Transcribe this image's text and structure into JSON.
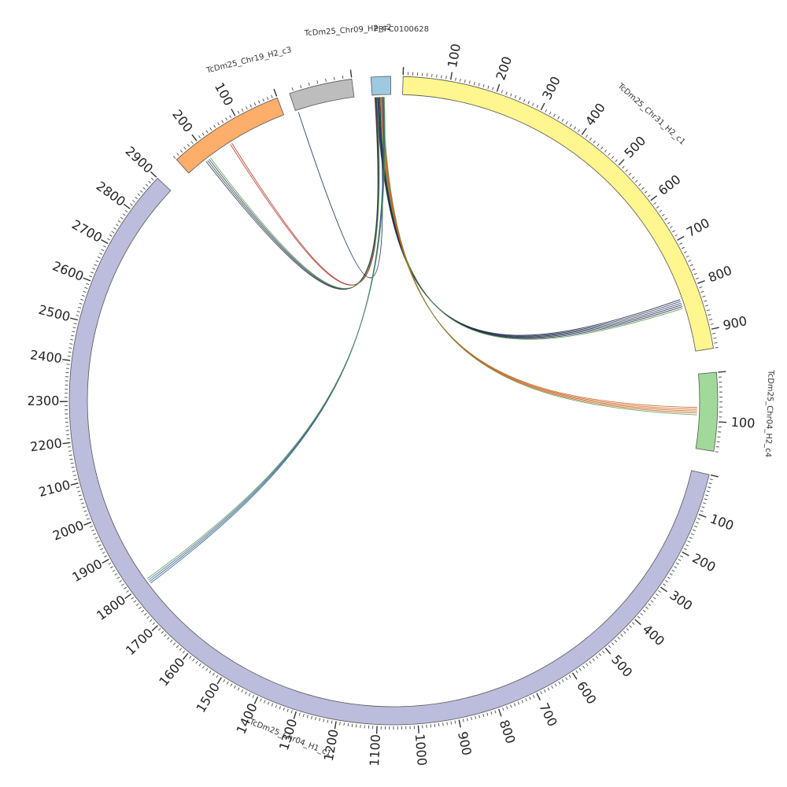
{
  "diagram": {
    "type": "circos",
    "units_per_tick_minor": 10,
    "units_per_tick_major": 100,
    "segments": [
      {
        "id": "chr31",
        "label": "TcDm25_Chr31_H2_c1",
        "length": 940,
        "color": "#fff68f"
      },
      {
        "id": "chr04h2",
        "label": "TcDm25_Chr04_H2_c4",
        "length": 160,
        "color": "#a1d99b"
      },
      {
        "id": "chr04h1",
        "label": "TcDm25_Chr04_H1_c1",
        "length": 2900,
        "color": "#bcbddc"
      },
      {
        "id": "chr19",
        "label": "TcDm25_Chr19_H2_c3",
        "length": 260,
        "color": "#fdae6b"
      },
      {
        "id": "chr09",
        "label": "TcDm25_Chr09_H2_c2",
        "length": 75,
        "color": "#bdbdbd"
      },
      {
        "id": "prfc",
        "label": "PRFC0100628",
        "length": 20,
        "color": "#9ecae1"
      }
    ],
    "links": [
      {
        "from": "prfc",
        "from_pos": 6,
        "to": "chr31",
        "to_pos": 830,
        "color": "#1b2a49",
        "bundle": 6
      },
      {
        "from": "prfc",
        "from_pos": 10,
        "to": "chr04h2",
        "to_pos": 80,
        "color": "#c8601c",
        "bundle": 5
      },
      {
        "from": "prfc",
        "from_pos": 3,
        "to": "chr19",
        "to_pos": 140,
        "color": "#b03a2e",
        "bundle": 2
      },
      {
        "from": "prfc",
        "from_pos": 4,
        "to": "chr19",
        "to_pos": 205,
        "color": "#2c3e50",
        "bundle": 4
      },
      {
        "from": "prfc",
        "from_pos": 8,
        "to": "chr09",
        "to_pos": 72,
        "color": "#17324d",
        "bundle": 1
      },
      {
        "from": "prfc",
        "from_pos": 12,
        "to": "chr04h1",
        "to_pos": 1800,
        "color": "#2f5d8a",
        "bundle": 4
      }
    ]
  }
}
